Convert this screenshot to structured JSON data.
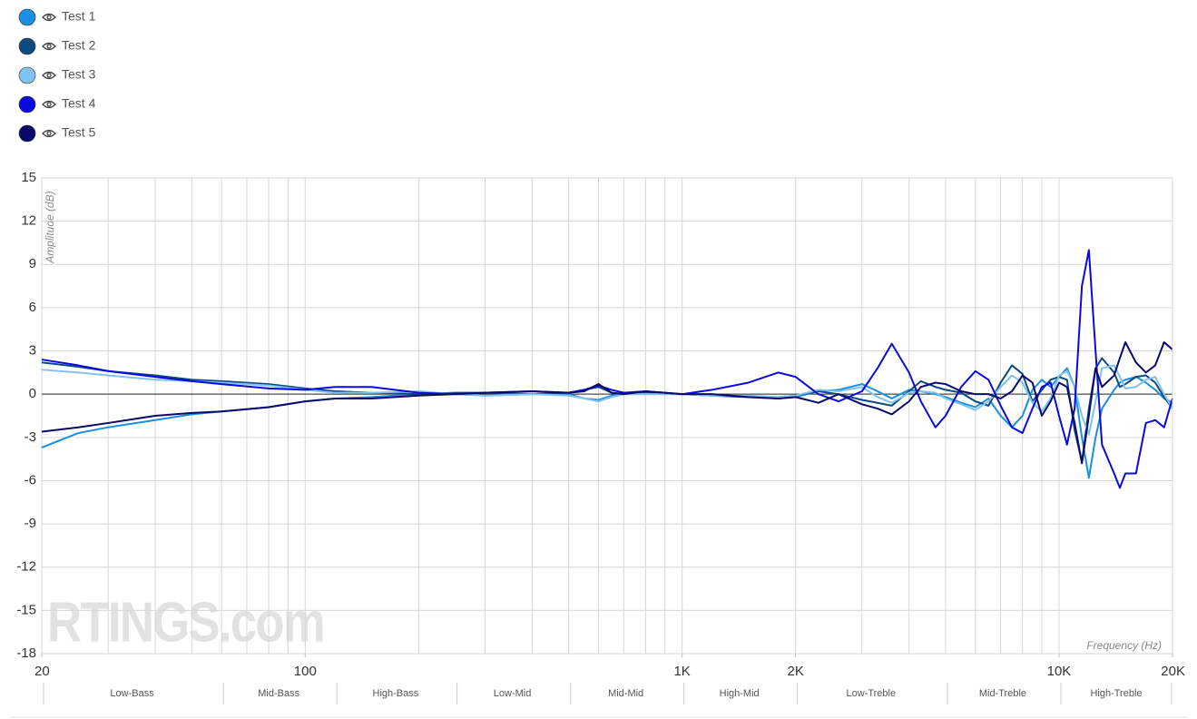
{
  "chart_data": {
    "type": "line",
    "y_label": "Amplitude (dB)",
    "x_label": "Frequency (Hz)",
    "watermark": "RTINGS.com",
    "log_x": true,
    "grid": true,
    "xlim": [
      20,
      20000
    ],
    "ylim": [
      -18,
      15
    ],
    "yticks": [
      15,
      12,
      9,
      6,
      3,
      0,
      -3,
      -6,
      -9,
      -12,
      -15,
      -18
    ],
    "xticks": [
      20,
      100,
      {
        "value": 1000,
        "label": "1K"
      },
      {
        "value": 2000,
        "label": "2K"
      },
      {
        "value": 10000,
        "label": "10K"
      },
      {
        "value": 20000,
        "label": "20K"
      }
    ],
    "xgrid": [
      20,
      30,
      40,
      50,
      60,
      70,
      80,
      90,
      100,
      200,
      300,
      400,
      500,
      600,
      700,
      800,
      900,
      1000,
      2000,
      3000,
      4000,
      5000,
      6000,
      7000,
      8000,
      9000,
      10000,
      20000
    ],
    "bands": [
      {
        "label": "Low-Bass",
        "from": 20,
        "to": 60
      },
      {
        "label": "Mid-Bass",
        "from": 60,
        "to": 120
      },
      {
        "label": "High-Bass",
        "from": 120,
        "to": 250
      },
      {
        "label": "Low-Mid",
        "from": 250,
        "to": 500
      },
      {
        "label": "Mid-Mid",
        "from": 500,
        "to": 1000
      },
      {
        "label": "High-Mid",
        "from": 1000,
        "to": 2000
      },
      {
        "label": "Low-Treble",
        "from": 2000,
        "to": 5000
      },
      {
        "label": "Mid-Treble",
        "from": 5000,
        "to": 10000
      },
      {
        "label": "High-Treble",
        "from": 10000,
        "to": 20000
      }
    ],
    "x": [
      20,
      25,
      30,
      40,
      50,
      60,
      80,
      100,
      120,
      150,
      200,
      250,
      300,
      400,
      500,
      550,
      600,
      650,
      700,
      800,
      1000,
      1200,
      1500,
      1800,
      2000,
      2300,
      2600,
      3000,
      3300,
      3600,
      4000,
      4300,
      4700,
      5000,
      5500,
      6000,
      6500,
      7000,
      7500,
      8000,
      8500,
      9000,
      9500,
      10000,
      10500,
      11000,
      11500,
      12000,
      12500,
      13000,
      14000,
      14500,
      15000,
      16000,
      17000,
      18000,
      19000,
      20000
    ],
    "series": [
      {
        "name": "Test 1",
        "color": "#1a8fe3",
        "values": [
          -3.7,
          -2.7,
          -2.3,
          -1.8,
          -1.4,
          -1.2,
          -0.9,
          -0.5,
          -0.3,
          -0.2,
          0,
          0,
          -0.1,
          0,
          0,
          -0.3,
          -0.4,
          -0.1,
          0,
          0,
          0,
          -0.1,
          -0.2,
          -0.3,
          -0.2,
          0.2,
          0.3,
          0.7,
          0.2,
          -0.3,
          0.3,
          0.2,
          0,
          -0.2,
          -0.6,
          -0.9,
          -0.3,
          -1.5,
          -2.3,
          -1.5,
          0.3,
          1,
          0.5,
          1.2,
          1.8,
          0.5,
          -3,
          -5.8,
          -3,
          -1,
          0.3,
          0.8,
          1,
          1.2,
          0.8,
          0.3,
          -0.3,
          -0.6
        ]
      },
      {
        "name": "Test 2",
        "color": "#0d4a80",
        "values": [
          2.2,
          1.9,
          1.6,
          1.3,
          1.0,
          0.9,
          0.7,
          0.4,
          0.2,
          0.1,
          0,
          0.1,
          0.1,
          0,
          0.1,
          0.3,
          0.5,
          0.1,
          0,
          0.1,
          0,
          -0.1,
          -0.2,
          -0.2,
          -0.1,
          0.2,
          0,
          -0.4,
          -0.6,
          -0.8,
          0.2,
          0.9,
          0.5,
          0.3,
          0.1,
          -0.5,
          -0.8,
          0.8,
          2.0,
          1.4,
          -0.5,
          0.3,
          1.0,
          1.2,
          1.0,
          -2.5,
          -4.7,
          -1,
          1.8,
          2.5,
          1.5,
          0.5,
          0.7,
          1.2,
          1.3,
          0.8,
          -0.2,
          -1.0
        ]
      },
      {
        "name": "Test 3",
        "color": "#80c3f0",
        "values": [
          1.7,
          1.5,
          1.3,
          1.0,
          0.9,
          0.8,
          0.6,
          0.3,
          0.1,
          0.1,
          0.2,
          0,
          -0.1,
          0,
          -0.1,
          -0.3,
          -0.5,
          -0.2,
          0,
          0,
          0,
          -0.1,
          -0.1,
          -0.2,
          -0.1,
          0.3,
          0.2,
          0.5,
          -0.2,
          -0.6,
          0.1,
          0.2,
          0.1,
          -0.3,
          -0.7,
          -1.1,
          -0.5,
          0.5,
          1.3,
          0.8,
          -0.6,
          -1.2,
          -0.3,
          1.3,
          1.6,
          0.5,
          -1.5,
          -2.8,
          -0.5,
          1.8,
          2.0,
          1.2,
          0.4,
          0.5,
          1,
          1.2,
          0,
          -1.0
        ]
      },
      {
        "name": "Test 4",
        "color": "#0a0ae0",
        "values": [
          2.4,
          2.0,
          1.6,
          1.2,
          0.9,
          0.7,
          0.4,
          0.3,
          0.5,
          0.5,
          0.1,
          0,
          0.1,
          0.2,
          0.1,
          0.3,
          0.6,
          0.3,
          0.1,
          0.2,
          0,
          0.3,
          0.8,
          1.5,
          1.2,
          0,
          -0.5,
          0.2,
          1.8,
          3.5,
          1.5,
          -0.5,
          -2.3,
          -1.5,
          0.5,
          1.6,
          1.0,
          -0.8,
          -2.3,
          -2.7,
          -1.0,
          0.5,
          0.8,
          -1.5,
          -3.5,
          -1.0,
          7.5,
          10.0,
          3.0,
          -3.5,
          -5.5,
          -6.5,
          -5.5,
          -5.5,
          -2.0,
          -1.8,
          -2.3,
          -0.3
        ]
      },
      {
        "name": "Test 5",
        "color": "#0a0a6b",
        "values": [
          -2.6,
          -2.3,
          -2.0,
          -1.5,
          -1.3,
          -1.2,
          -0.9,
          -0.5,
          -0.3,
          -0.3,
          -0.1,
          0,
          0.1,
          0.2,
          0.1,
          0.2,
          0.7,
          0.1,
          0,
          0.2,
          0,
          0,
          -0.2,
          -0.3,
          -0.2,
          -0.6,
          0,
          -0.7,
          -1.0,
          -1.4,
          -0.5,
          0.5,
          0.8,
          0.7,
          0.2,
          0,
          0,
          -0.3,
          0.2,
          1.3,
          0.8,
          -1.5,
          -0.5,
          0.8,
          0.5,
          -2.0,
          -4.8,
          -1.5,
          1.8,
          0.5,
          1.3,
          2.5,
          3.6,
          2.2,
          1.5,
          2.0,
          3.6,
          3.1
        ]
      }
    ]
  }
}
